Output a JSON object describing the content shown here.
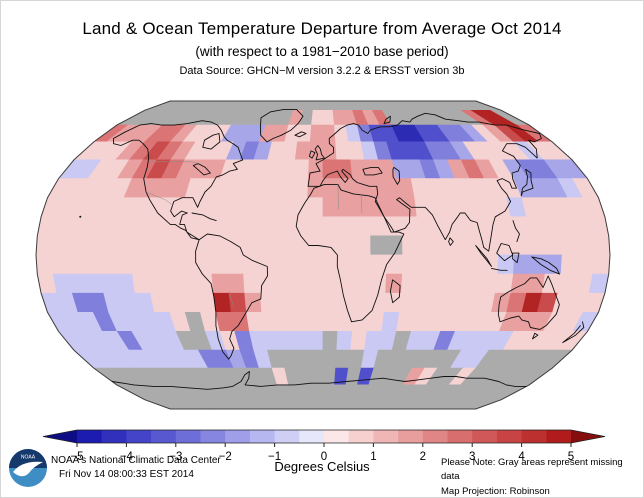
{
  "title": "Land & Ocean Temperature Departure from Average Oct 2014",
  "subtitle": "(with respect to a 1981−2010 base period)",
  "data_source": "Data Source: GHCN−M version 3.2.2 & ERSST version 3b",
  "footer": {
    "org_name": "NOAA's National Climatic Data Center",
    "generated": "Fri Nov 14 08:00:33 EST 2014",
    "units_label": "Degrees Celsius",
    "note": "Please Note: Gray areas represent missing data",
    "projection": "Map Projection: Robinson"
  },
  "logo": {
    "label": "NOAA",
    "dark_blue": "#16396b",
    "light_blue": "#3f8dc5"
  },
  "chart_data": {
    "type": "heatmap",
    "title": "Land & Ocean Temperature Departure from Average Oct 2014",
    "month": "Oct 2014",
    "base_period": "1981−2010",
    "units": "Degrees Celsius",
    "map_projection": "Robinson",
    "missing_data_color": "#ababab",
    "colorbar": {
      "range": [
        -5,
        5
      ],
      "tick_labels": [
        "−5",
        "−4",
        "−3",
        "−2",
        "−1",
        "0",
        "1",
        "2",
        "3",
        "4",
        "5"
      ],
      "segment_colors": [
        "#1c1cb0",
        "#3030bd",
        "#4444c8",
        "#5858d1",
        "#6e6ed9",
        "#8686e1",
        "#9e9ee9",
        "#b6b6f0",
        "#cfcff6",
        "#e7e7fb",
        "#fbe7e7",
        "#f6cfcf",
        "#f0b6b6",
        "#e99e9e",
        "#e18686",
        "#d96e6e",
        "#d15858",
        "#c84444",
        "#bd3030",
        "#b01c1c"
      ],
      "under_arrow_color": "#0d0d85",
      "over_arrow_color": "#850d0d"
    },
    "grid": {
      "cell_size_degrees": 10,
      "rows_order": "90N to 90S top to bottom",
      "cols_order": "180W to 180E left to right",
      "palette": {
        "G": "#ababab",
        "D": "#2b2bb4",
        "B": "#5050cc",
        "b": "#8080dc",
        "L": "#a6a6e9",
        "l": "#c9c9f3",
        "p": "#f6d3d3",
        "r": "#e9a0a0",
        "R": "#db7474",
        "S": "#ca4b4b",
        "X": "#b22424"
      },
      "palette_anomaly_c": {
        "G": "missing",
        "D": -4.5,
        "B": -3,
        "b": -2,
        "L": -1,
        "l": -0.5,
        "p": 0.5,
        "r": 1.5,
        "R": 2.5,
        "S": 3.5,
        "X": 4.5
      },
      "rows": [
        "GGGGGGGGGGGGGGGGGGGGGGGGGGGGGGGGGGGG",
        "GGGGGGGGGGGGGGGrGpprrRrRGGGGGGGGRXXG",
        "RrrrRRrpppLLLrrpprrplbBBDDBBbbLprSXR",
        "ppprRSRrpppLbLpprrrpplbBBBbbLpppplpp",
        "llpprRSRrrrpppppprRRrrrLLbLrRrpLbbLL",
        "ppppprrrrpppppppprrrrrrrpppppppLLLlp",
        "pppppppppppppppppprrrrrrpppppplppppp",
        "pppppppppppppppppppppppppppppppppppp",
        "pppppppppppppppppppppGGppppppppppppp",
        "ppppppppppppppppppppppppppppplLLLppp",
        "plllllppppprrppppppppprppppppprrpppl",
        "llbblllppppXSrppppppppppppppprRXSppp",
        "lllbllllpGpRRppppppppplppppppprrrppl",
        "llllblllGGlpblllllGlpllGllbllllppppp",
        "lllllllllbbLblGGGGGGGlGGGGGGllGGGGGG",
        "GGGGGGGGGGGGGGpGGGGBGBGGGrpGGpGGGGGG",
        "GGGGGGGGGGGGGGGGGGGGGGGGGGGGGGGGGGGG",
        "GGGGGGGGGGGGGGGGGGGGGGGGGGGGGGGGGGGG"
      ]
    }
  }
}
